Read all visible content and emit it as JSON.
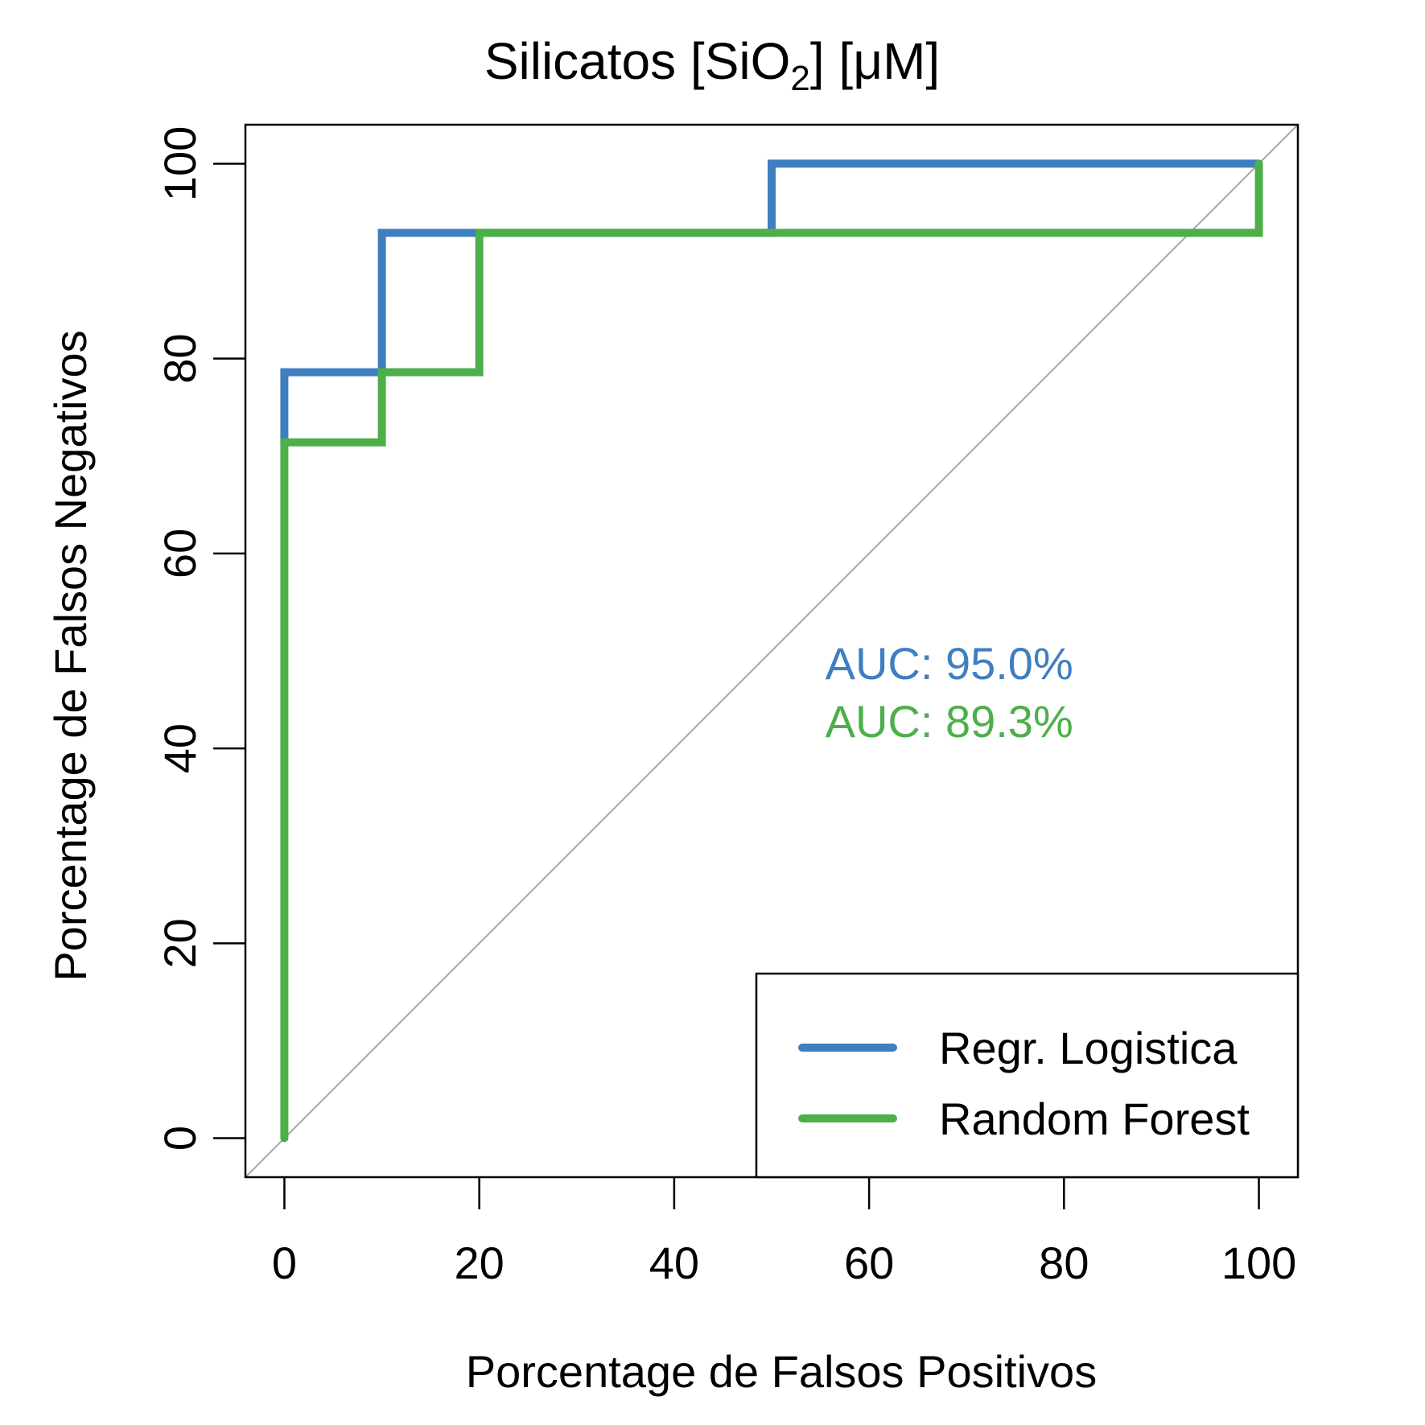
{
  "chart_data": {
    "type": "line",
    "title": {
      "main": "Silicatos [SiO",
      "subscript": "2",
      "suffix": "] [μM]"
    },
    "xlabel": "Porcentage de Falsos Positivos",
    "ylabel": "Porcentage de Falsos Negativos",
    "xlim": [
      -4,
      104
    ],
    "ylim": [
      -4,
      104
    ],
    "xticks": [
      0,
      20,
      40,
      60,
      80,
      100
    ],
    "yticks": [
      0,
      20,
      40,
      60,
      80,
      100
    ],
    "xtick_labels": [
      "0",
      "20",
      "40",
      "60",
      "80",
      "100"
    ],
    "ytick_labels": [
      "0",
      "20",
      "40",
      "60",
      "80",
      "100"
    ],
    "grid": false,
    "reference_line": {
      "from": [
        0,
        0
      ],
      "to": [
        100,
        100
      ],
      "color": "#a6a6a6"
    },
    "series": [
      {
        "name": "Regr. Logistica",
        "color": "#3f7fbf",
        "step": true,
        "x": [
          0,
          0,
          10,
          10,
          50,
          50,
          100
        ],
        "y": [
          71.4,
          78.6,
          78.6,
          92.9,
          92.9,
          100,
          100
        ]
      },
      {
        "name": "Random Forest",
        "color": "#4daf4a",
        "step": true,
        "x": [
          0,
          0,
          10,
          10,
          20,
          20,
          100,
          100
        ],
        "y": [
          0,
          71.4,
          71.4,
          78.6,
          78.6,
          92.9,
          92.9,
          100
        ]
      }
    ],
    "annotations": [
      {
        "text": "AUC: 95.0%",
        "color": "#3f7fbf"
      },
      {
        "text": "AUC: 89.3%",
        "color": "#4daf4a"
      }
    ],
    "legend": {
      "position": "bottom-right",
      "entries": [
        "Regr. Logistica",
        "Random Forest"
      ]
    }
  }
}
